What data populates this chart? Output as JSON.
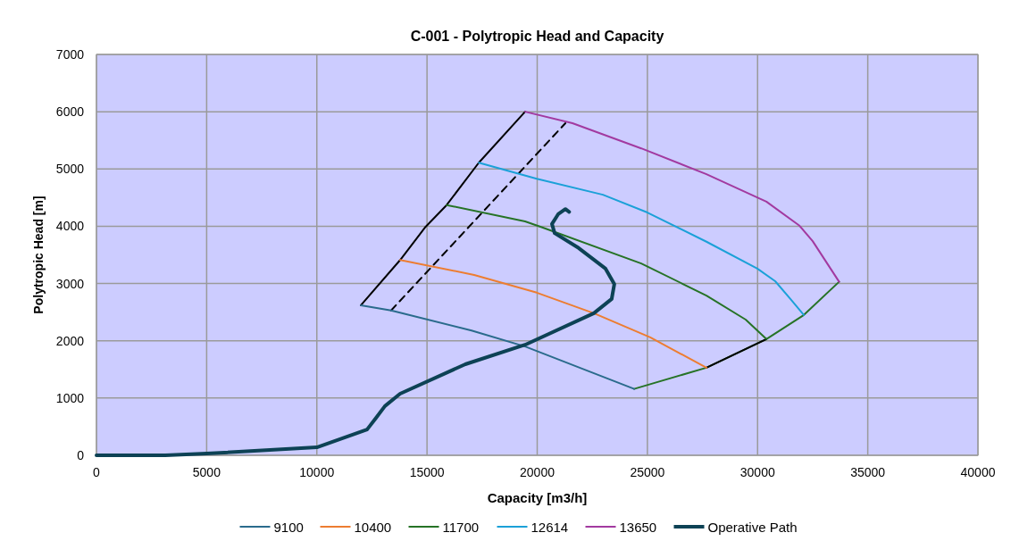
{
  "chart_data": {
    "type": "line",
    "title": "C-001 - Polytropic Head and Capacity",
    "xlabel": "Capacity [m3/h]",
    "ylabel": "Polytropic Head [m]",
    "xlim": [
      0,
      40000
    ],
    "xticks": [
      0,
      5000,
      10000,
      15000,
      20000,
      25000,
      30000,
      35000,
      40000
    ],
    "ylim": [
      0,
      7000
    ],
    "yticks": [
      0,
      1000,
      2000,
      3000,
      4000,
      5000,
      6000,
      7000
    ],
    "grid": true,
    "legend": "bottom",
    "marker": "none",
    "series": [
      {
        "color": "#000000",
        "x": [
          12000,
          13780,
          14900,
          15890,
          17350,
          19450
        ],
        "values": [
          2620,
          3410,
          3975,
          4370,
          5110,
          6000
        ]
      },
      {
        "color": "#000000",
        "line_style": "dashed",
        "x": [
          13370,
          21280
        ],
        "values": [
          2530,
          5800
        ]
      },
      {
        "color": "#267326",
        "x": [
          24400,
          27680,
          30400,
          32100,
          33700
        ],
        "values": [
          1160,
          1530,
          2030,
          2450,
          3030
        ]
      },
      {
        "color": "#000000",
        "x": [
          27680,
          30400
        ],
        "values": [
          1530,
          2030
        ]
      },
      {
        "name": "9100",
        "color": "#2a6b8c",
        "x": [
          12000,
          13370,
          17020,
          19450,
          24400
        ],
        "values": [
          2620,
          2530,
          2180,
          1900,
          1160
        ]
      },
      {
        "name": "10400",
        "color": "#ed7d31",
        "x": [
          13780,
          17140,
          19980,
          22570,
          25130,
          27680
        ],
        "values": [
          3410,
          3150,
          2840,
          2480,
          2060,
          1530
        ]
      },
      {
        "name": "11700",
        "color": "#267326",
        "x": [
          15890,
          19450,
          20260,
          24720,
          27680,
          29460,
          30400
        ],
        "values": [
          4370,
          4085,
          3975,
          3350,
          2790,
          2370,
          2030
        ]
      },
      {
        "name": "12614",
        "color": "#1ba1d8",
        "x": [
          17350,
          19980,
          22980,
          25000,
          27680,
          29990,
          30800,
          31490,
          32100
        ],
        "values": [
          5110,
          4830,
          4550,
          4240,
          3730,
          3260,
          3040,
          2730,
          2450
        ]
      },
      {
        "name": "13650",
        "color": "#a23aa0",
        "x": [
          19450,
          21600,
          24720,
          27680,
          30400,
          31900,
          32500,
          33700
        ],
        "values": [
          6000,
          5800,
          5360,
          4910,
          4430,
          4010,
          3740,
          3030
        ]
      },
      {
        "name": "Operative Path",
        "color": "#0d4255",
        "x": [
          0,
          3120,
          5000,
          10000,
          12280,
          12690,
          13090,
          13780,
          16740,
          19450,
          22570,
          23380,
          23500,
          23100,
          21880,
          20790,
          20670,
          20950,
          21280,
          21450
        ],
        "values": [
          0,
          0,
          30,
          140,
          450,
          655,
          860,
          1075,
          1590,
          1930,
          2480,
          2730,
          2990,
          3260,
          3620,
          3880,
          4040,
          4210,
          4300,
          4250
        ]
      }
    ]
  }
}
